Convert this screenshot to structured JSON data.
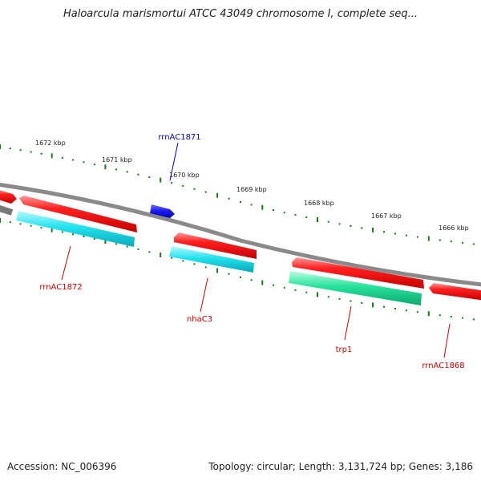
{
  "title": "Haloarcula marismortui ATCC 43049 chromosome I, complete seq...",
  "footer": {
    "accession": "Accession: NC_006396",
    "topology": "Topology: circular; Length: 3,131,724 bp; Genes: 3,186"
  },
  "ticks": [
    "1672 kbp",
    "1671 kbp",
    "1670 kbp",
    "1669 kbp",
    "1668 kbp",
    "1667 kbp",
    "1666 kbp"
  ],
  "genes": [
    {
      "name": "rrnAC1871",
      "color": "#0000cc"
    },
    {
      "name": "rrnAC1872",
      "color": "#cc0000"
    },
    {
      "name": "nhaC3",
      "color": "#cc0000"
    },
    {
      "name": "trp1",
      "color": "#cc0000"
    },
    {
      "name": "rrnAC1868",
      "color": "#cc0000"
    }
  ],
  "colors": {
    "forward_cds": "#ff1a1a",
    "reverse_cds": "#19e6f0",
    "rna": "#22dd99",
    "other": "#1a1aee",
    "backbone": "#808080",
    "tick": "#1a7a1a"
  }
}
